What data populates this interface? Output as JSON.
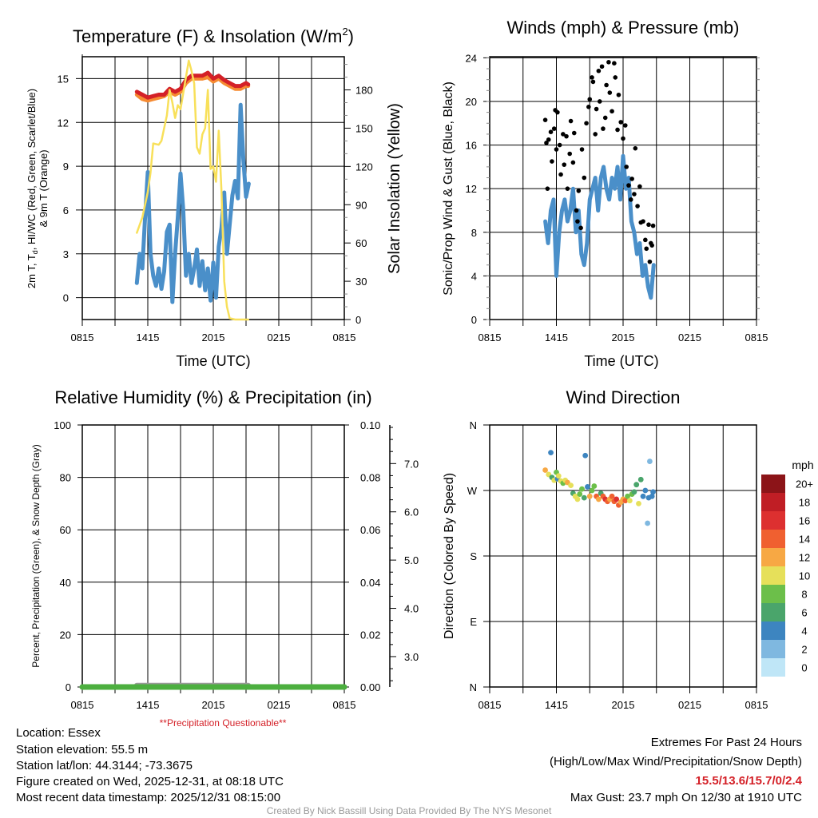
{
  "chart_data": [
    {
      "id": "temperature",
      "type": "line",
      "title_main": "Temperature (F) & Insolation (W/m",
      "title_sup": "2",
      "title_end": ")",
      "xlabel": "Time (UTC)",
      "ylabel_line1_a": "2m T, T",
      "ylabel_line1_sub": "d",
      "ylabel_line1_b": ", HI/WC (Red, Green, Scarlet/Blue)",
      "ylabel_line2": "& 9m T (Orange)",
      "y2label": "Solar Insolation (Yellow)",
      "x_unit": "hours since 0815 UTC",
      "xlim": [
        0,
        24
      ],
      "xticks": [
        "0815",
        "1415",
        "2015",
        "0215",
        "0815"
      ],
      "ylim": [
        -1.5,
        16.5
      ],
      "yticks": [
        0,
        3,
        6,
        9,
        12,
        15
      ],
      "y2lim": [
        0,
        206
      ],
      "y2ticks": [
        0,
        30,
        60,
        90,
        120,
        150,
        180
      ],
      "series": [
        {
          "name": "2m T",
          "color": "#d42027",
          "x": [
            5.0,
            5.5,
            6.0,
            6.5,
            7.0,
            7.5,
            8.0,
            8.5,
            9.0,
            9.5,
            10.0,
            10.5,
            11.0,
            11.5,
            12.0,
            12.5,
            13.0,
            13.5,
            14.0,
            14.5,
            15.0,
            15.2
          ],
          "y": [
            14.1,
            13.9,
            13.7,
            13.8,
            13.9,
            13.9,
            14.3,
            14.1,
            14.3,
            14.9,
            15.2,
            15.2,
            15.2,
            15.4,
            15.0,
            15.2,
            14.9,
            14.7,
            14.5,
            14.5,
            14.7,
            14.6
          ]
        },
        {
          "name": "9m T",
          "color": "#f68b32",
          "x": [
            5.0,
            5.5,
            6.0,
            6.5,
            7.0,
            7.5,
            8.0,
            8.5,
            9.0,
            9.5,
            10.0,
            10.5,
            11.0,
            11.5,
            12.0,
            12.5,
            13.0,
            13.5,
            14.0,
            14.5,
            15.0,
            15.2
          ],
          "y": [
            13.9,
            13.6,
            13.5,
            13.6,
            13.7,
            13.8,
            14.1,
            13.9,
            14.1,
            14.7,
            15.0,
            15.0,
            15.0,
            15.1,
            14.8,
            15.0,
            14.7,
            14.5,
            14.3,
            14.3,
            14.5,
            14.5
          ]
        },
        {
          "name": "Td",
          "color": "#4a8fc9",
          "x_start": 5.0,
          "x_step": 0.25,
          "y": [
            1.0,
            3.0,
            2.0,
            5.5,
            8.6,
            3.0,
            1.5,
            0.8,
            2.0,
            0.6,
            1.8,
            4.5,
            5.0,
            -0.3,
            3.0,
            5.5,
            8.5,
            6.0,
            1.5,
            3.0,
            1.0,
            2.0,
            3.3,
            0.8,
            2.5,
            0.5,
            2.0,
            -0.2,
            2.4,
            0.0,
            3.5,
            4.8,
            7.2,
            3.0,
            5.0,
            7.0,
            8.0,
            6.8,
            13.2,
            9.5,
            6.9,
            7.8
          ]
        },
        {
          "name": "Solar Insolation",
          "axis": "right",
          "color": "#f8e05a",
          "x": [
            5.0,
            5.5,
            6.0,
            6.25,
            6.5,
            7.0,
            7.25,
            7.75,
            8.0,
            8.25,
            8.5,
            8.75,
            9.0,
            9.5,
            9.75,
            10.0,
            10.25,
            10.5,
            10.75,
            11.0,
            11.25,
            11.5,
            11.75,
            12.0,
            12.25,
            12.5,
            12.75,
            13.0,
            13.25,
            13.5,
            14.0,
            15.2
          ],
          "y": [
            68,
            80,
            100,
            115,
            138,
            137,
            140,
            160,
            180,
            170,
            158,
            168,
            165,
            190,
            203,
            195,
            185,
            135,
            130,
            145,
            150,
            180,
            118,
            120,
            108,
            148,
            100,
            30,
            10,
            1,
            0,
            0
          ]
        }
      ]
    },
    {
      "id": "winds",
      "type": "line",
      "title": "Winds (mph) & Pressure (mb)",
      "xlabel": "Time (UTC)",
      "ylabel": "Sonic/Prop Wind & Gust (Blue, Black)",
      "xlim": [
        0,
        24
      ],
      "xticks": [
        "0815",
        "1415",
        "2015",
        "0215",
        "0815"
      ],
      "ylim": [
        0,
        24.1
      ],
      "yticks": [
        0,
        4,
        8,
        12,
        16,
        20,
        24
      ],
      "series": [
        {
          "name": "Sustained wind",
          "color": "#4a8fc9",
          "x_start": 5.0,
          "x_step": 0.25,
          "y": [
            9,
            7,
            10,
            11,
            4,
            8,
            10,
            11,
            9,
            10,
            12,
            8,
            10,
            6,
            5,
            7,
            11,
            12,
            13,
            10,
            13,
            14,
            12,
            11,
            13,
            12,
            14,
            11,
            15,
            12,
            13,
            9,
            8,
            6,
            7,
            4,
            5,
            3,
            2,
            5
          ]
        },
        {
          "name": "Gust",
          "type": "scatter",
          "color": "#000000",
          "points": [
            [
              5.0,
              18.3
            ],
            [
              5.1,
              16.2
            ],
            [
              5.2,
              12.0
            ],
            [
              5.3,
              16.5
            ],
            [
              5.5,
              17.2
            ],
            [
              5.6,
              14.5
            ],
            [
              5.8,
              17.5
            ],
            [
              5.9,
              19.2
            ],
            [
              6.0,
              15.6
            ],
            [
              6.1,
              19.0
            ],
            [
              6.3,
              16.0
            ],
            [
              6.4,
              13.3
            ],
            [
              6.6,
              17.0
            ],
            [
              6.7,
              14.2
            ],
            [
              6.9,
              16.8
            ],
            [
              7.0,
              12.0
            ],
            [
              7.2,
              15.2
            ],
            [
              7.3,
              18.2
            ],
            [
              7.5,
              14.4
            ],
            [
              7.6,
              17.1
            ],
            [
              7.8,
              10.0
            ],
            [
              7.9,
              9.0
            ],
            [
              8.0,
              11.8
            ],
            [
              8.2,
              8.4
            ],
            [
              8.3,
              15.6
            ],
            [
              8.5,
              13.0
            ],
            [
              8.7,
              18.0
            ],
            [
              8.9,
              19.5
            ],
            [
              9.0,
              20.2
            ],
            [
              9.2,
              22.2
            ],
            [
              9.3,
              21.8
            ],
            [
              9.5,
              17.0
            ],
            [
              9.6,
              19.3
            ],
            [
              9.8,
              22.8
            ],
            [
              9.9,
              20.0
            ],
            [
              10.1,
              23.2
            ],
            [
              10.2,
              17.5
            ],
            [
              10.4,
              18.5
            ],
            [
              10.5,
              21.5
            ],
            [
              10.7,
              23.6
            ],
            [
              10.8,
              20.8
            ],
            [
              11.0,
              19.1
            ],
            [
              11.2,
              23.5
            ],
            [
              11.3,
              22.2
            ],
            [
              11.5,
              17.4
            ],
            [
              11.6,
              20.6
            ],
            [
              11.8,
              18.1
            ],
            [
              12.0,
              16.6
            ],
            [
              12.2,
              17.8
            ],
            [
              12.3,
              14.0
            ],
            [
              12.5,
              12.3
            ],
            [
              12.7,
              11.0
            ],
            [
              12.8,
              12.9
            ],
            [
              13.0,
              11.5
            ],
            [
              13.1,
              15.7
            ],
            [
              13.3,
              10.4
            ],
            [
              13.5,
              12.2
            ],
            [
              13.6,
              8.9
            ],
            [
              13.8,
              9.0
            ],
            [
              14.0,
              7.3
            ],
            [
              14.1,
              6.5
            ],
            [
              14.3,
              8.7
            ],
            [
              14.4,
              5.3
            ],
            [
              14.5,
              7.0
            ],
            [
              14.6,
              6.8
            ],
            [
              14.7,
              8.6
            ]
          ]
        }
      ]
    },
    {
      "id": "humidity",
      "type": "line",
      "title": "Relative Humidity (%) & Precipitation (in)",
      "ylabel": "Percent, Precipitation (Green), & Snow Depth (Gray)",
      "note": "**Precipitation Questionable**",
      "xlim": [
        0,
        24
      ],
      "xticks": [
        "0815",
        "1415",
        "2015",
        "0215",
        "0815"
      ],
      "ylim": [
        0,
        100
      ],
      "yticks": [
        0,
        20,
        40,
        60,
        80,
        100
      ],
      "y2lim": [
        0,
        0.1
      ],
      "y2ticks": [
        "0.00",
        "0.02",
        "0.04",
        "0.06",
        "0.08",
        "0.10"
      ],
      "y3lim": [
        2.37,
        7.8
      ],
      "y3ticks": [
        "3.0",
        "4.0",
        "5.0",
        "6.0",
        "7.0"
      ],
      "series": [
        {
          "name": "Precipitation",
          "color": "#4caf3f",
          "x": [
            0,
            24
          ],
          "y": [
            0,
            0
          ]
        },
        {
          "name": "Snow Depth",
          "color": "#9a9a9a",
          "x": [
            5.0,
            15.2
          ],
          "y": [
            2.4,
            2.4
          ]
        }
      ]
    },
    {
      "id": "direction",
      "type": "scatter",
      "title": "Wind Direction",
      "ylabel": "Direction (Colored By Speed)",
      "xlim": [
        0,
        24
      ],
      "xticks": [
        "0815",
        "1415",
        "2015",
        "0215",
        "0815"
      ],
      "ylim": [
        0,
        360
      ],
      "yticks": [
        {
          "v": 0,
          "label": "N"
        },
        {
          "v": 90,
          "label": "E"
        },
        {
          "v": 180,
          "label": "S"
        },
        {
          "v": 270,
          "label": "W"
        },
        {
          "v": 360,
          "label": "N"
        }
      ],
      "colorbar": {
        "title": "mph",
        "labels": [
          "0",
          "2",
          "4",
          "6",
          "8",
          "10",
          "12",
          "14",
          "16",
          "18",
          "20+"
        ],
        "colors": [
          "#bfe6f7",
          "#7fb8e0",
          "#3d85c0",
          "#4aa56b",
          "#6cbf4a",
          "#e6e05a",
          "#f7a844",
          "#f06030",
          "#dd3030",
          "#c01e25",
          "#8c1418"
        ]
      },
      "points_hour_dir_speed": [
        [
          5.0,
          298,
          12
        ],
        [
          5.3,
          292,
          10
        ],
        [
          5.5,
          322,
          4
        ],
        [
          5.6,
          288,
          6
        ],
        [
          5.8,
          284,
          10
        ],
        [
          6.0,
          295,
          8
        ],
        [
          6.1,
          286,
          4
        ],
        [
          6.2,
          290,
          10
        ],
        [
          6.4,
          283,
          10
        ],
        [
          6.6,
          280,
          8
        ],
        [
          6.8,
          284,
          10
        ],
        [
          7.0,
          281,
          12
        ],
        [
          7.3,
          277,
          10
        ],
        [
          7.5,
          266,
          6
        ],
        [
          7.7,
          262,
          10
        ],
        [
          7.9,
          258,
          10
        ],
        [
          8.1,
          265,
          8
        ],
        [
          8.3,
          272,
          8
        ],
        [
          8.5,
          260,
          6
        ],
        [
          8.6,
          318,
          4
        ],
        [
          8.8,
          275,
          4
        ],
        [
          9.0,
          262,
          12
        ],
        [
          9.2,
          270,
          8
        ],
        [
          9.4,
          276,
          8
        ],
        [
          9.6,
          262,
          14
        ],
        [
          9.8,
          258,
          12
        ],
        [
          10.0,
          266,
          6
        ],
        [
          10.2,
          262,
          14
        ],
        [
          10.4,
          258,
          16
        ],
        [
          10.6,
          255,
          14
        ],
        [
          10.8,
          258,
          12
        ],
        [
          11.0,
          262,
          14
        ],
        [
          11.2,
          255,
          14
        ],
        [
          11.4,
          258,
          16
        ],
        [
          11.6,
          250,
          14
        ],
        [
          11.8,
          254,
          12
        ],
        [
          12.0,
          258,
          12
        ],
        [
          12.2,
          256,
          14
        ],
        [
          12.4,
          262,
          8
        ],
        [
          12.6,
          256,
          10
        ],
        [
          12.8,
          265,
          8
        ],
        [
          13.0,
          268,
          6
        ],
        [
          13.2,
          278,
          6
        ],
        [
          13.4,
          252,
          10
        ],
        [
          13.6,
          285,
          6
        ],
        [
          13.8,
          262,
          4
        ],
        [
          14.0,
          270,
          4
        ],
        [
          14.2,
          225,
          2
        ],
        [
          14.3,
          260,
          4
        ],
        [
          14.4,
          310,
          2
        ],
        [
          14.6,
          262,
          4
        ],
        [
          14.7,
          268,
          4
        ]
      ]
    }
  ],
  "footer": {
    "location": "Location: Essex",
    "elevation": "Station elevation: 55.5 m",
    "latlon": "Station lat/lon: 44.3144; -73.3675",
    "created": "Figure created on Wed, 2025-12-31, at 08:18 UTC",
    "recent": "Most recent data timestamp: 2025/12/31 08:15:00",
    "extremes_title": "Extremes For Past 24 Hours",
    "extremes_subtitle": "(High/Low/Max Wind/Precipitation/Snow Depth)",
    "extremes_values": "15.5/13.6/15.7/0/2.4",
    "max_gust": "Max Gust: 23.7 mph On 12/30 at 1910 UTC",
    "credit": "Created By Nick Bassill Using Data Provided By The NYS Mesonet"
  },
  "colors": {
    "alert_red": "#d42027",
    "credit_gray": "#999999"
  }
}
